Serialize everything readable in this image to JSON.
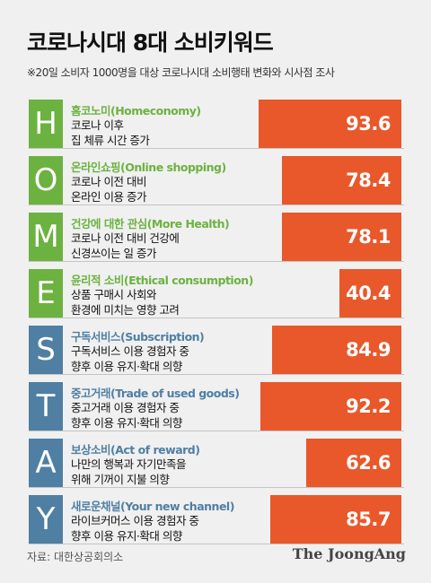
{
  "title": "코로나시대 8대 소비키워드",
  "subtitle": "※20일 소비자 1000명을 대상 코로나시대 소비행태 변화와 시사점 조사",
  "source": "자료: 대한상공회의소",
  "logo": "The JoongAng",
  "colors": {
    "bar": "#e8582b",
    "green": "#6cb240",
    "blue": "#4f7fa3",
    "background": "#f0f0f0"
  },
  "chart_data": {
    "type": "bar",
    "title": "코로나시대 8대 소비키워드",
    "categories": [
      "홈코노미(Homeconomy)",
      "온라인쇼핑(Online shopping)",
      "건강에 대한 관심(More Health)",
      "윤리적 소비(Ethical consumption)",
      "구독서비스(Subscription)",
      "중고거래(Trade of used goods)",
      "보상소비(Act of reward)",
      "새로운채널(Your new channel)"
    ],
    "values": [
      93.6,
      78.4,
      78.1,
      40.4,
      84.9,
      92.2,
      62.6,
      85.7
    ],
    "ylim": [
      0,
      100
    ]
  },
  "rows": [
    {
      "letter": "H",
      "keyword": "홈코노미(Homeconomy)",
      "line1": "코로나 이후",
      "line2": "집 체류 시간 증가",
      "value": "93.6",
      "group": "green"
    },
    {
      "letter": "O",
      "keyword": "온라인쇼핑(Online shopping)",
      "line1": "코로나 이전 대비",
      "line2": "온라인 이용 증가",
      "value": "78.4",
      "group": "green"
    },
    {
      "letter": "M",
      "keyword": "건강에 대한 관심(More Health)",
      "line1": "코로나 이전 대비 건강에",
      "line2": "신경쓰이는 일 증가",
      "value": "78.1",
      "group": "green"
    },
    {
      "letter": "E",
      "keyword": "윤리적 소비(Ethical consumption)",
      "line1": "상품 구매시 사회와",
      "line2": "환경에 미치는 영향 고려",
      "value": "40.4",
      "group": "green"
    },
    {
      "letter": "S",
      "keyword": "구독서비스(Subscription)",
      "line1": "구독서비스 이용 경험자 중",
      "line2": "향후 이용 유지·확대 의향",
      "value": "84.9",
      "group": "blue"
    },
    {
      "letter": "T",
      "keyword": "중고거래(Trade of used goods)",
      "line1": "중고거래 이용 경험자 중",
      "line2": "향후 이용 유지·확대 의향",
      "value": "92.2",
      "group": "blue"
    },
    {
      "letter": "A",
      "keyword": "보상소비(Act of reward)",
      "line1": "나만의 행복과 자기만족을",
      "line2": "위해 기꺼이 지불 의향",
      "value": "62.6",
      "group": "blue"
    },
    {
      "letter": "Y",
      "keyword": "새로운채널(Your new channel)",
      "line1": "라이브커머스 이용 경험자 중",
      "line2": "향후 이용 유지·확대 의향",
      "value": "85.7",
      "group": "blue"
    }
  ]
}
